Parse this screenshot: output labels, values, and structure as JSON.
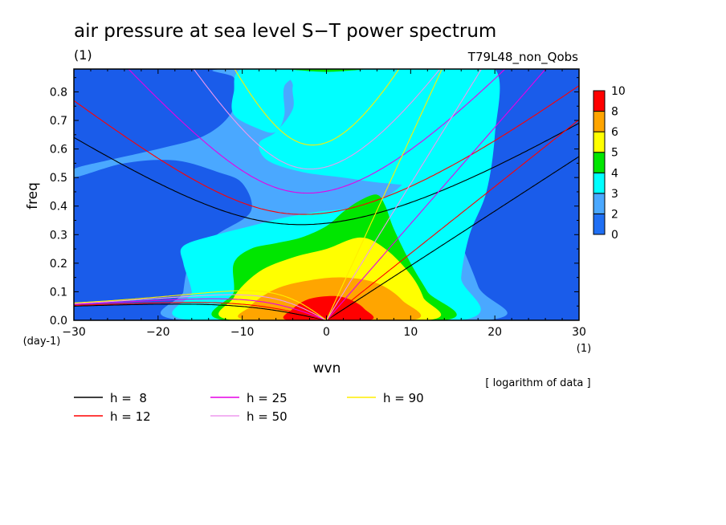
{
  "chart_data": {
    "type": "heatmap",
    "title": "air pressure at sea level S−T power spectrum",
    "title_unit": "(1)",
    "experiment": "T79L48_non_Qobs",
    "xlabel": "wvn",
    "xunit": "(1)",
    "ylabel": "freq",
    "yunit": "(day-1)",
    "xlim": [
      -30,
      30
    ],
    "ylim": [
      0.0,
      0.88
    ],
    "xticks": [
      -30,
      -20,
      -10,
      0,
      10,
      20,
      30
    ],
    "yticks": [
      0.0,
      0.1,
      0.2,
      0.3,
      0.4,
      0.5,
      0.6,
      0.7,
      0.8
    ],
    "colorbar": {
      "levels": [
        0,
        2,
        3,
        4,
        5,
        6,
        8,
        10
      ],
      "colors": [
        "#1f6ff4",
        "#4aa8ff",
        "#00ffff",
        "#00e600",
        "#ffff00",
        "#ffa500",
        "#ff0000"
      ],
      "note": "[ logarithm of data ]"
    },
    "background_color": "#1a5cea",
    "contours": [
      {
        "level": 2,
        "color": "#4aa8ff",
        "points": [
          [
            -30,
            0.5
          ],
          [
            -24,
            0.55
          ],
          [
            -18,
            0.56
          ],
          [
            -13,
            0.52
          ],
          [
            -10,
            0.48
          ],
          [
            -9,
            0.38
          ],
          [
            -13,
            0.3
          ],
          [
            -16,
            0.22
          ],
          [
            -17,
            0.1
          ],
          [
            -17,
            0.0
          ],
          [
            19,
            0.0
          ],
          [
            18,
            0.12
          ],
          [
            15,
            0.35
          ],
          [
            13.5,
            0.55
          ],
          [
            13,
            0.75
          ],
          [
            12.5,
            0.88
          ],
          [
            -12,
            0.88
          ],
          [
            -11,
            0.85
          ],
          [
            -10.5,
            0.78
          ],
          [
            -12,
            0.7
          ],
          [
            -15,
            0.64
          ],
          [
            -20,
            0.6
          ],
          [
            -26,
            0.56
          ],
          [
            -30,
            0.53
          ]
        ]
      },
      {
        "level": 3,
        "color": "#00ffff",
        "points": [
          [
            -16,
            0.0
          ],
          [
            -16,
            0.1
          ],
          [
            -17,
            0.2
          ],
          [
            -17,
            0.26
          ],
          [
            -13,
            0.3
          ],
          [
            -9,
            0.33
          ],
          [
            -5,
            0.36
          ],
          [
            -1,
            0.38
          ],
          [
            4,
            0.4
          ],
          [
            8,
            0.45
          ],
          [
            11,
            0.55
          ],
          [
            12,
            0.65
          ],
          [
            12.5,
            0.8
          ],
          [
            12.5,
            0.88
          ],
          [
            20,
            0.88
          ],
          [
            20,
            0.65
          ],
          [
            19,
            0.45
          ],
          [
            17,
            0.3
          ],
          [
            16,
            0.15
          ],
          [
            16,
            0.0
          ]
        ]
      },
      {
        "level": 3,
        "color": "#00ffff",
        "points": [
          [
            -10,
            0.88
          ],
          [
            -11,
            0.8
          ],
          [
            -11,
            0.72
          ],
          [
            -8,
            0.67
          ],
          [
            -6,
            0.66
          ],
          [
            -5,
            0.72
          ],
          [
            -5,
            0.82
          ],
          [
            -3,
            0.88
          ]
        ]
      },
      {
        "level": 3,
        "color": "#00ffff",
        "points": [
          [
            -3,
            0.88
          ],
          [
            -4,
            0.82
          ],
          [
            -4,
            0.74
          ],
          [
            -6,
            0.66
          ],
          [
            -8,
            0.62
          ],
          [
            -7,
            0.56
          ],
          [
            -3,
            0.52
          ],
          [
            2,
            0.5
          ],
          [
            7,
            0.48
          ],
          [
            11,
            0.48
          ],
          [
            13,
            0.55
          ],
          [
            13,
            0.88
          ]
        ]
      },
      {
        "level": 3,
        "color": "#00ffff",
        "points": [
          [
            -15,
            0.0
          ],
          [
            -15,
            0.12
          ],
          [
            -16,
            0.22
          ],
          [
            -15,
            0.28
          ],
          [
            -9,
            0.3
          ],
          [
            -3,
            0.31
          ],
          [
            2,
            0.33
          ],
          [
            6,
            0.38
          ],
          [
            9,
            0.45
          ],
          [
            11,
            0.5
          ],
          [
            10,
            0.35
          ],
          [
            12,
            0.2
          ],
          [
            14,
            0.08
          ],
          [
            15,
            0.0
          ]
        ]
      },
      {
        "level": 4,
        "color": "#00e600",
        "points": [
          [
            -12,
            0.0
          ],
          [
            -11,
            0.1
          ],
          [
            -11,
            0.2
          ],
          [
            -9,
            0.25
          ],
          [
            -6,
            0.27
          ],
          [
            -3,
            0.29
          ],
          [
            0,
            0.33
          ],
          [
            2,
            0.38
          ],
          [
            4,
            0.42
          ],
          [
            6,
            0.44
          ],
          [
            7,
            0.4
          ],
          [
            8,
            0.32
          ],
          [
            10,
            0.2
          ],
          [
            12,
            0.1
          ],
          [
            14,
            0.0
          ]
        ]
      },
      {
        "level": 5,
        "color": "#ffff00",
        "points": [
          [
            -11,
            0.0
          ],
          [
            -11,
            0.08
          ],
          [
            -8,
            0.17
          ],
          [
            -4,
            0.22
          ],
          [
            0,
            0.25
          ],
          [
            4,
            0.29
          ],
          [
            7,
            0.25
          ],
          [
            10,
            0.16
          ],
          [
            11.5,
            0.08
          ],
          [
            12,
            0.0
          ]
        ]
      },
      {
        "level": 6,
        "color": "#ffa500",
        "points": [
          [
            -9,
            0.0
          ],
          [
            -9,
            0.05
          ],
          [
            -6,
            0.11
          ],
          [
            -2,
            0.14
          ],
          [
            2,
            0.15
          ],
          [
            6,
            0.13
          ],
          [
            9,
            0.07
          ],
          [
            10,
            0.0
          ]
        ]
      },
      {
        "level": 8,
        "color": "#ff0000",
        "points": [
          [
            -4.5,
            0.0
          ],
          [
            -4,
            0.04
          ],
          [
            -2,
            0.075
          ],
          [
            1,
            0.085
          ],
          [
            3,
            0.07
          ],
          [
            4.5,
            0.04
          ],
          [
            5,
            0.0
          ]
        ]
      },
      {
        "level": 4,
        "color": "#00e600",
        "points": [
          [
            -4,
            0.88
          ],
          [
            -3,
            0.875
          ],
          [
            0,
            0.87
          ],
          [
            3,
            0.875
          ],
          [
            4,
            0.88
          ]
        ]
      }
    ],
    "dispersion_curves": [
      {
        "name": "h =  8",
        "equivalent_depth": 8,
        "color": "#000000"
      },
      {
        "name": "h = 12",
        "equivalent_depth": 12,
        "color": "#ff0000"
      },
      {
        "name": "h = 25",
        "equivalent_depth": 25,
        "color": "#e600e6"
      },
      {
        "name": "h = 50",
        "equivalent_depth": 50,
        "color": "#ee99ee"
      },
      {
        "name": "h = 90",
        "equivalent_depth": 90,
        "color": "#ffee00"
      }
    ],
    "legend_placement": "bottom"
  }
}
